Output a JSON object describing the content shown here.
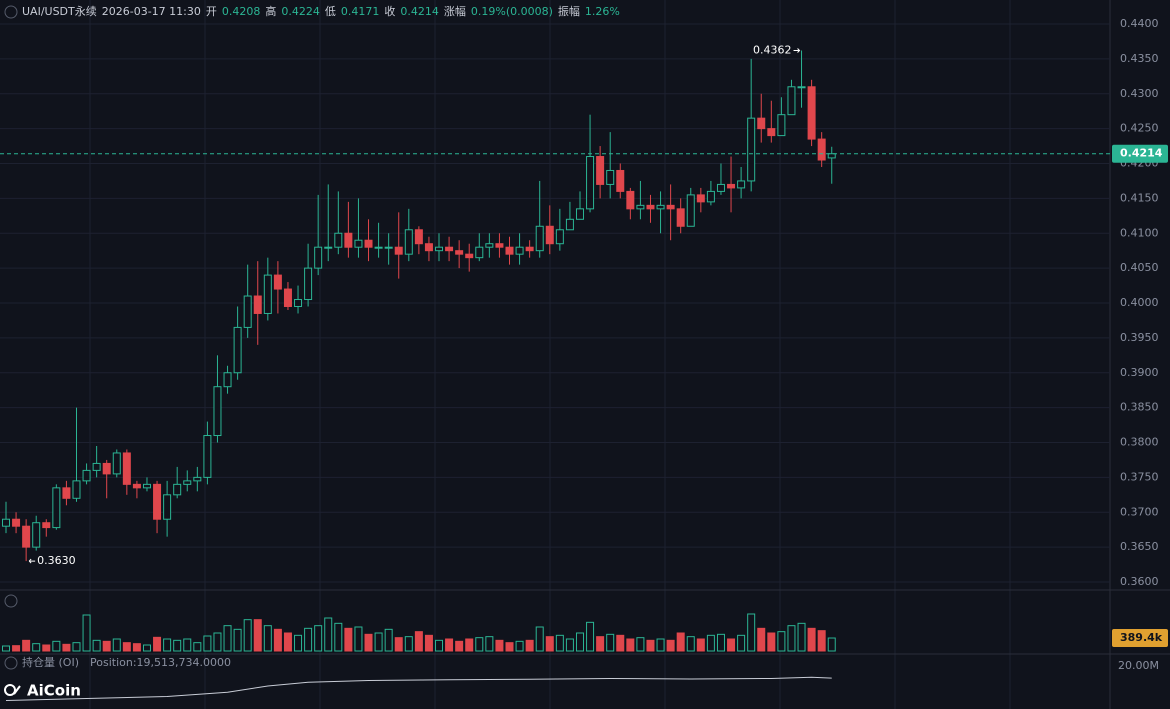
{
  "chart_data": {
    "type": "candlestick",
    "header": {
      "symbol": "UAI/USDT永续",
      "date": "2026-03-17 11:30",
      "items": [
        {
          "label": "开",
          "value": "0.4208"
        },
        {
          "label": "高",
          "value": "0.4224"
        },
        {
          "label": "低",
          "value": "0.4171"
        },
        {
          "label": "收",
          "value": "0.4214"
        },
        {
          "label": "涨幅",
          "value": "0.19%(0.0008)"
        },
        {
          "label": "振幅",
          "value": "1.26%"
        }
      ]
    },
    "colors": {
      "up": "#2bb594",
      "down": "#e0474c"
    },
    "open": [
      0.368,
      0.369,
      0.368,
      0.365,
      0.3685,
      0.3678,
      0.3735,
      0.372,
      0.3745,
      0.376,
      0.377,
      0.3755,
      0.3785,
      0.374,
      0.3735,
      0.374,
      0.369,
      0.3725,
      0.374,
      0.3745,
      0.375,
      0.381,
      0.388,
      0.39,
      0.3965,
      0.401,
      0.3985,
      0.404,
      0.402,
      0.3995,
      0.4005,
      0.405,
      0.408,
      0.408,
      0.41,
      0.408,
      0.409,
      0.408,
      0.408,
      0.408,
      0.407,
      0.4105,
      0.4085,
      0.4075,
      0.408,
      0.4075,
      0.407,
      0.4065,
      0.408,
      0.4085,
      0.408,
      0.407,
      0.408,
      0.4075,
      0.411,
      0.4085,
      0.4105,
      0.412,
      0.4135,
      0.421,
      0.417,
      0.419,
      0.416,
      0.4135,
      0.414,
      0.4135,
      0.414,
      0.4135,
      0.411,
      0.4155,
      0.4145,
      0.416,
      0.417,
      0.4165,
      0.4175,
      0.4265,
      0.425,
      0.424,
      0.427,
      0.431,
      0.431,
      0.4235,
      0.4208
    ],
    "high": [
      0.3715,
      0.37,
      0.369,
      0.3695,
      0.369,
      0.374,
      0.3745,
      0.385,
      0.377,
      0.3795,
      0.3775,
      0.379,
      0.379,
      0.3745,
      0.375,
      0.3745,
      0.3745,
      0.3765,
      0.376,
      0.3765,
      0.383,
      0.3925,
      0.391,
      0.3995,
      0.4055,
      0.406,
      0.4065,
      0.406,
      0.403,
      0.4025,
      0.4085,
      0.4155,
      0.417,
      0.416,
      0.4145,
      0.415,
      0.412,
      0.4115,
      0.41,
      0.413,
      0.4135,
      0.411,
      0.4095,
      0.41,
      0.4095,
      0.409,
      0.4085,
      0.41,
      0.41,
      0.41,
      0.4095,
      0.41,
      0.409,
      0.4175,
      0.414,
      0.4135,
      0.4145,
      0.416,
      0.427,
      0.4225,
      0.4245,
      0.42,
      0.4165,
      0.4175,
      0.4155,
      0.416,
      0.417,
      0.415,
      0.4165,
      0.4165,
      0.4175,
      0.42,
      0.421,
      0.4195,
      0.435,
      0.43,
      0.429,
      0.4295,
      0.432,
      0.4362,
      0.432,
      0.4245,
      0.4224
    ],
    "low": [
      0.367,
      0.367,
      0.363,
      0.3645,
      0.3665,
      0.3675,
      0.371,
      0.3715,
      0.374,
      0.375,
      0.372,
      0.375,
      0.3725,
      0.372,
      0.373,
      0.367,
      0.3665,
      0.372,
      0.373,
      0.373,
      0.374,
      0.38,
      0.387,
      0.389,
      0.395,
      0.394,
      0.3975,
      0.3985,
      0.399,
      0.3985,
      0.3995,
      0.404,
      0.406,
      0.407,
      0.4065,
      0.4065,
      0.406,
      0.4065,
      0.4055,
      0.4035,
      0.406,
      0.407,
      0.406,
      0.406,
      0.406,
      0.405,
      0.4045,
      0.406,
      0.4065,
      0.4065,
      0.4055,
      0.4055,
      0.4065,
      0.4065,
      0.407,
      0.4075,
      0.4105,
      0.412,
      0.413,
      0.415,
      0.415,
      0.415,
      0.412,
      0.412,
      0.4115,
      0.41,
      0.409,
      0.41,
      0.411,
      0.413,
      0.414,
      0.4155,
      0.413,
      0.415,
      0.416,
      0.423,
      0.423,
      0.424,
      0.427,
      0.428,
      0.4225,
      0.4195,
      0.4171
    ],
    "close": [
      0.369,
      0.368,
      0.365,
      0.3685,
      0.3678,
      0.3735,
      0.372,
      0.3745,
      0.376,
      0.377,
      0.3755,
      0.3785,
      0.374,
      0.3735,
      0.374,
      0.369,
      0.3725,
      0.374,
      0.3745,
      0.375,
      0.381,
      0.388,
      0.39,
      0.3965,
      0.401,
      0.3985,
      0.404,
      0.402,
      0.3995,
      0.4005,
      0.405,
      0.408,
      0.408,
      0.41,
      0.408,
      0.409,
      0.408,
      0.408,
      0.408,
      0.407,
      0.4105,
      0.4085,
      0.4075,
      0.408,
      0.4075,
      0.407,
      0.4065,
      0.408,
      0.4085,
      0.408,
      0.407,
      0.408,
      0.4075,
      0.411,
      0.4085,
      0.4105,
      0.412,
      0.4135,
      0.421,
      0.417,
      0.419,
      0.416,
      0.4135,
      0.414,
      0.4135,
      0.414,
      0.4135,
      0.411,
      0.4155,
      0.4145,
      0.416,
      0.417,
      0.4165,
      0.4175,
      0.4265,
      0.425,
      0.424,
      0.427,
      0.431,
      0.431,
      0.4235,
      0.4205,
      0.4214
    ],
    "ylim": [
      0.36,
      0.44
    ],
    "yticks": [
      {
        "value": 0.44,
        "label": "0.4400"
      },
      {
        "value": 0.435,
        "label": "0.4350"
      },
      {
        "value": 0.43,
        "label": "0.4300"
      },
      {
        "value": 0.425,
        "label": "0.4250"
      },
      {
        "value": 0.42,
        "label": "0.4200"
      },
      {
        "value": 0.415,
        "label": "0.4150"
      },
      {
        "value": 0.41,
        "label": "0.4100"
      },
      {
        "value": 0.405,
        "label": "0.4050"
      },
      {
        "value": 0.4,
        "label": "0.4000"
      },
      {
        "value": 0.395,
        "label": "0.3950"
      },
      {
        "value": 0.39,
        "label": "0.3900"
      },
      {
        "value": 0.385,
        "label": "0.3850"
      },
      {
        "value": 0.38,
        "label": "0.3800"
      },
      {
        "value": 0.375,
        "label": "0.3750"
      },
      {
        "value": 0.37,
        "label": "0.3700"
      },
      {
        "value": 0.365,
        "label": "0.3650"
      },
      {
        "value": 0.36,
        "label": "0.3600"
      }
    ],
    "last_price": {
      "value": 0.4214,
      "label": "0.4214"
    },
    "annotations": [
      {
        "value": 0.4362,
        "label": "0.4362"
      },
      {
        "value": 0.363,
        "label": "0.3630"
      }
    ],
    "volume": {
      "values": [
        150000,
        160000,
        320000,
        220000,
        180000,
        290000,
        200000,
        250000,
        1080000,
        320000,
        290000,
        360000,
        250000,
        220000,
        180000,
        410000,
        360000,
        320000,
        360000,
        250000,
        450000,
        540000,
        760000,
        650000,
        940000,
        940000,
        760000,
        650000,
        540000,
        470000,
        680000,
        760000,
        990000,
        830000,
        680000,
        720000,
        500000,
        540000,
        650000,
        400000,
        430000,
        580000,
        470000,
        320000,
        360000,
        290000,
        360000,
        400000,
        430000,
        320000,
        250000,
        290000,
        320000,
        720000,
        430000,
        470000,
        360000,
        540000,
        860000,
        430000,
        500000,
        470000,
        360000,
        400000,
        320000,
        360000,
        320000,
        540000,
        430000,
        360000,
        470000,
        500000,
        360000,
        470000,
        1110000,
        680000,
        540000,
        580000,
        760000,
        830000,
        680000,
        610000,
        389400
      ],
      "ylim": [
        0,
        1800000
      ],
      "last": {
        "value": 389400,
        "label": "389.4k"
      }
    },
    "oi": {
      "title": "持仓量 (OI)",
      "position_text": "Position:19,513,734.0000",
      "x": [
        0,
        8,
        16,
        22,
        26,
        30,
        36,
        44,
        52,
        60,
        68,
        76,
        80,
        82
      ],
      "values": [
        18620000,
        18700000,
        18780000,
        18950000,
        19200000,
        19350000,
        19420000,
        19450000,
        19470000,
        19500000,
        19480000,
        19500000,
        19550000,
        19513734
      ],
      "ylim": [
        18400000,
        20400000
      ],
      "yticks": [
        {
          "value": 20000000,
          "label": "20.00M"
        }
      ]
    },
    "brand": "AiCoin"
  }
}
